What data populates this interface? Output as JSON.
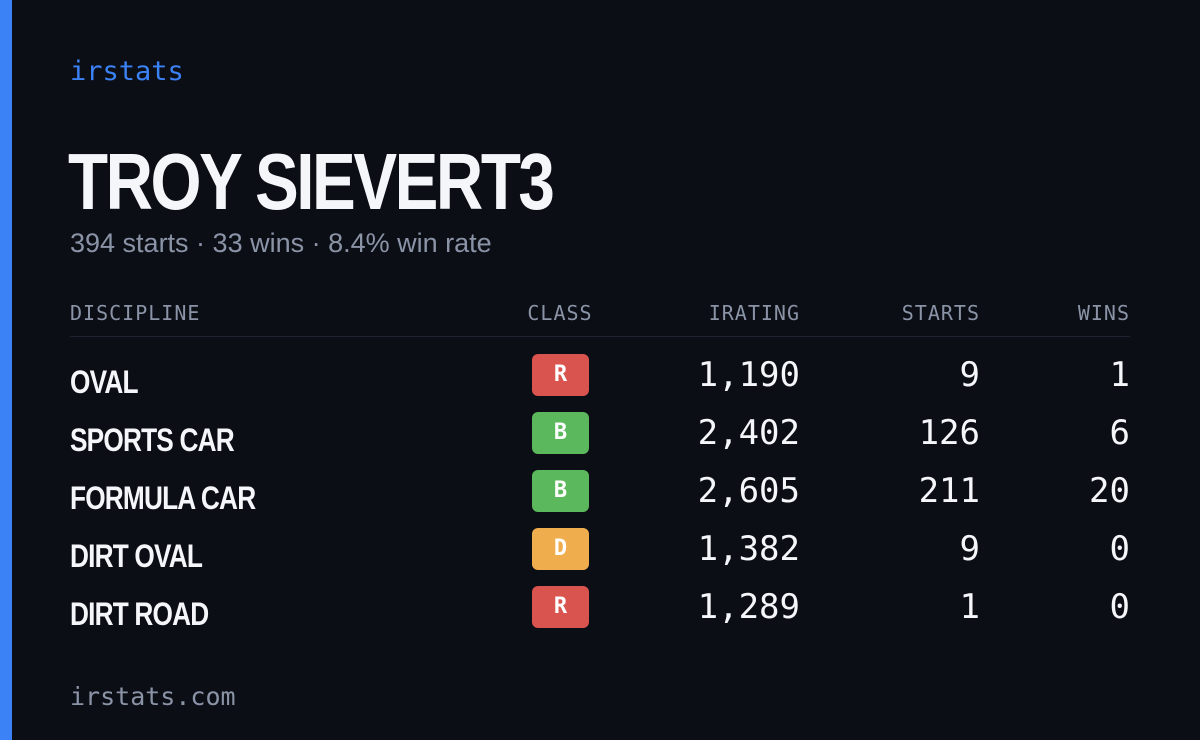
{
  "brand": "irstats",
  "header": {
    "title": "TROY SIEVERT3",
    "subtitle": "394 starts · 33 wins · 8.4% win rate"
  },
  "table": {
    "columns": [
      "DISCIPLINE",
      "CLASS",
      "IRATING",
      "STARTS",
      "WINS"
    ],
    "rows": [
      {
        "discipline": "OVAL",
        "class": "R",
        "class_color": "#d9534f",
        "irating": "1,190",
        "starts": "9",
        "wins": "1"
      },
      {
        "discipline": "SPORTS CAR",
        "class": "B",
        "class_color": "#5cb85c",
        "irating": "2,402",
        "starts": "126",
        "wins": "6"
      },
      {
        "discipline": "FORMULA CAR",
        "class": "B",
        "class_color": "#5cb85c",
        "irating": "2,605",
        "starts": "211",
        "wins": "20"
      },
      {
        "discipline": "DIRT OVAL",
        "class": "D",
        "class_color": "#f0ad4e",
        "irating": "1,382",
        "starts": "9",
        "wins": "0"
      },
      {
        "discipline": "DIRT ROAD",
        "class": "R",
        "class_color": "#d9534f",
        "irating": "1,289",
        "starts": "1",
        "wins": "0"
      }
    ]
  },
  "footer": "irstats.com"
}
